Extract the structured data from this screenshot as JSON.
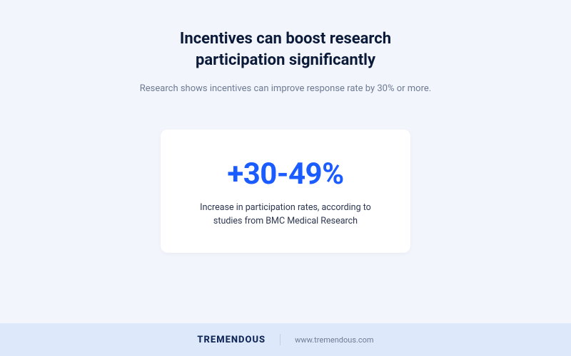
{
  "colors": {
    "page_bg": "#f2f6fc",
    "footer_bg": "#dde9fb",
    "title_color": "#0c1a3a",
    "subtitle_color": "#6e7a93",
    "card_bg": "#ffffff",
    "stat_color": "#1a5cff",
    "card_desc_color": "#2c3650",
    "brand_color": "#0f2657",
    "divider_color": "#c5cfe4",
    "url_color": "#6e7a93"
  },
  "header": {
    "title": "Incentives can boost research participation significantly",
    "subtitle": "Research shows incentives can improve response rate by 30% or more."
  },
  "card": {
    "stat": "+30-49%",
    "description": "Increase in participation rates, according to studies from BMC Medical Research"
  },
  "footer": {
    "brand": "TREMENDOUS",
    "url": "www.tremendous.com"
  }
}
